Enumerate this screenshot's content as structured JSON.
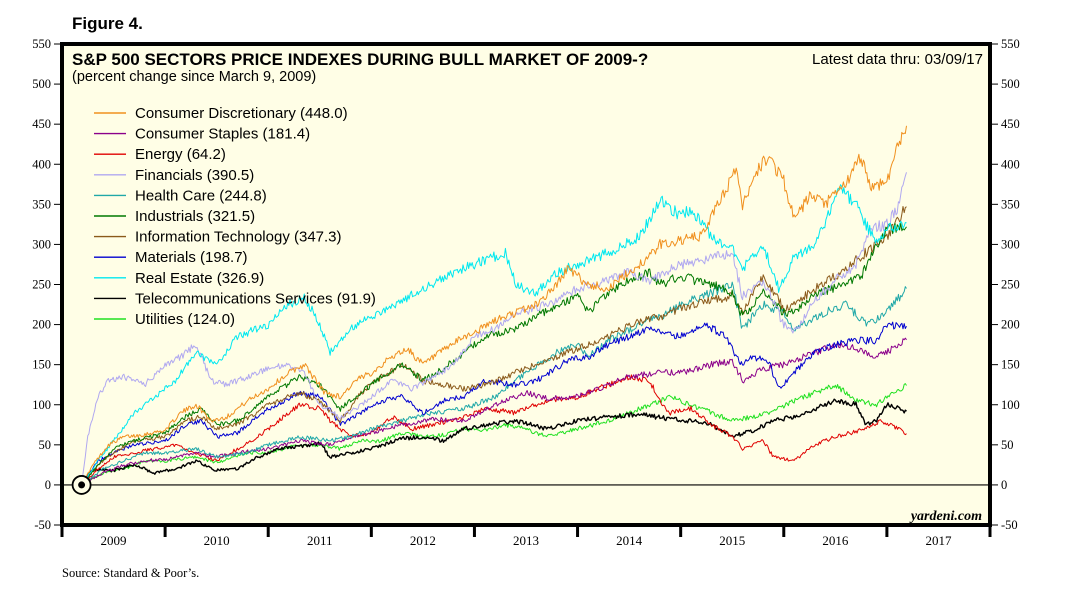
{
  "figure_label": "Figure 4.",
  "source": "Source: Standard & Poor’s.",
  "chart_data": {
    "type": "line",
    "title": "S&P 500 SECTORS PRICE INDEXES DURING BULL MARKET OF 2009-?",
    "subtitle": "(percent change since March 9, 2009)",
    "annotation_latest": "Latest data thru: 03/09/17",
    "watermark": "yardeni.com",
    "xlabel": "",
    "ylabel": "",
    "xlim": [
      2009.0,
      2018.0
    ],
    "ylim": [
      -50,
      550
    ],
    "yticks": [
      -50,
      0,
      50,
      100,
      150,
      200,
      250,
      300,
      350,
      400,
      450,
      500,
      550
    ],
    "ytick_labels": [
      "-50",
      "0",
      "50",
      "100",
      "150",
      "200",
      "250",
      "300",
      "350",
      "400",
      "450",
      "500",
      "550"
    ],
    "xtick_labels": [
      "2009",
      "2010",
      "2011",
      "2012",
      "2013",
      "2014",
      "2015",
      "2016",
      "2017"
    ],
    "xtick_boundaries": [
      2009,
      2010,
      2011,
      2012,
      2013,
      2014,
      2015,
      2016,
      2017,
      2018
    ],
    "grid": false,
    "zero_line": true,
    "origin_marker": {
      "x": 2009.19,
      "y": 0
    },
    "legend_position": "top-left",
    "series": [
      {
        "name": "Consumer Discretionary",
        "legend": "Consumer Discretionary (448.0)",
        "latest": 448.0,
        "color": "#f0901e",
        "x": [
          2009.19,
          2009.3,
          2009.45,
          2009.6,
          2009.75,
          2010.0,
          2010.15,
          2010.3,
          2010.45,
          2010.6,
          2010.8,
          2011.0,
          2011.2,
          2011.35,
          2011.55,
          2011.7,
          2011.85,
          2012.0,
          2012.2,
          2012.35,
          2012.5,
          2012.7,
          2012.9,
          2013.0,
          2013.2,
          2013.4,
          2013.6,
          2013.8,
          2013.9,
          2014.0,
          2014.1,
          2014.3,
          2014.5,
          2014.7,
          2014.8,
          2015.0,
          2015.2,
          2015.4,
          2015.55,
          2015.6,
          2015.7,
          2015.85,
          2016.0,
          2016.1,
          2016.25,
          2016.4,
          2016.6,
          2016.75,
          2016.85,
          2017.0,
          2017.1,
          2017.19
        ],
        "y": [
          0,
          25,
          50,
          60,
          62,
          68,
          90,
          100,
          80,
          85,
          105,
          120,
          140,
          150,
          115,
          110,
          130,
          140,
          160,
          170,
          150,
          168,
          185,
          190,
          205,
          215,
          225,
          250,
          270,
          260,
          250,
          245,
          265,
          285,
          300,
          305,
          310,
          360,
          395,
          345,
          385,
          410,
          380,
          330,
          360,
          350,
          375,
          410,
          370,
          380,
          420,
          448
        ]
      },
      {
        "name": "Consumer Staples",
        "legend": "Consumer Staples (181.4)",
        "latest": 181.4,
        "color": "#8b008b",
        "x": [
          2009.19,
          2009.4,
          2009.6,
          2009.8,
          2010.0,
          2010.3,
          2010.5,
          2010.8,
          2011.0,
          2011.3,
          2011.6,
          2011.8,
          2012.0,
          2012.3,
          2012.6,
          2012.9,
          2013.2,
          2013.5,
          2013.7,
          2014.0,
          2014.2,
          2014.5,
          2014.8,
          2015.0,
          2015.3,
          2015.5,
          2015.6,
          2015.8,
          2016.0,
          2016.3,
          2016.5,
          2016.7,
          2016.9,
          2017.0,
          2017.19
        ],
        "y": [
          0,
          15,
          25,
          30,
          32,
          40,
          35,
          42,
          45,
          55,
          50,
          60,
          65,
          75,
          82,
          80,
          100,
          115,
          108,
          110,
          120,
          135,
          140,
          140,
          150,
          155,
          130,
          145,
          150,
          165,
          175,
          170,
          160,
          165,
          181
        ]
      },
      {
        "name": "Energy",
        "legend": "Energy (64.2)",
        "latest": 64.2,
        "color": "#e00000",
        "x": [
          2009.19,
          2009.35,
          2009.5,
          2009.7,
          2009.9,
          2010.1,
          2010.3,
          2010.5,
          2010.7,
          2010.9,
          2011.1,
          2011.3,
          2011.5,
          2011.6,
          2011.8,
          2012.0,
          2012.2,
          2012.4,
          2012.6,
          2012.9,
          2013.1,
          2013.4,
          2013.7,
          2014.0,
          2014.3,
          2014.5,
          2014.7,
          2014.8,
          2014.9,
          2015.1,
          2015.3,
          2015.5,
          2015.6,
          2015.8,
          2015.9,
          2016.1,
          2016.3,
          2016.5,
          2016.8,
          2016.95,
          2017.19
        ],
        "y": [
          0,
          20,
          35,
          40,
          45,
          50,
          40,
          30,
          45,
          60,
          80,
          100,
          95,
          80,
          60,
          65,
          85,
          70,
          75,
          85,
          95,
          90,
          105,
          110,
          125,
          135,
          130,
          105,
          90,
          95,
          75,
          60,
          45,
          55,
          35,
          30,
          50,
          60,
          70,
          80,
          64
        ]
      },
      {
        "name": "Financials",
        "legend": "Financials (390.5)",
        "latest": 390.5,
        "color": "#b0a8f0",
        "x": [
          2009.19,
          2009.25,
          2009.35,
          2009.45,
          2009.6,
          2009.8,
          2010.0,
          2010.15,
          2010.3,
          2010.45,
          2010.6,
          2010.8,
          2011.0,
          2011.2,
          2011.35,
          2011.5,
          2011.7,
          2011.85,
          2012.0,
          2012.2,
          2012.4,
          2012.6,
          2012.8,
          2013.0,
          2013.2,
          2013.4,
          2013.6,
          2013.8,
          2014.0,
          2014.3,
          2014.5,
          2014.7,
          2015.0,
          2015.2,
          2015.5,
          2015.6,
          2015.8,
          2016.0,
          2016.1,
          2016.3,
          2016.5,
          2016.7,
          2016.85,
          2017.0,
          2017.1,
          2017.19
        ],
        "y": [
          0,
          60,
          110,
          130,
          135,
          125,
          150,
          160,
          175,
          130,
          125,
          135,
          145,
          150,
          140,
          100,
          85,
          95,
          110,
          130,
          120,
          135,
          150,
          185,
          195,
          215,
          220,
          230,
          245,
          255,
          265,
          255,
          275,
          280,
          290,
          235,
          255,
          200,
          190,
          230,
          255,
          275,
          320,
          325,
          345,
          390
        ]
      },
      {
        "name": "Health Care",
        "legend": "Health Care (244.8)",
        "latest": 244.8,
        "color": "#20a8a8",
        "x": [
          2009.19,
          2009.4,
          2009.6,
          2009.8,
          2010.0,
          2010.3,
          2010.5,
          2010.8,
          2011.0,
          2011.3,
          2011.6,
          2011.8,
          2012.0,
          2012.3,
          2012.6,
          2012.9,
          2013.2,
          2013.5,
          2013.8,
          2014.0,
          2014.1,
          2014.3,
          2014.6,
          2014.8,
          2015.0,
          2015.3,
          2015.5,
          2015.6,
          2015.8,
          2016.0,
          2016.1,
          2016.4,
          2016.6,
          2016.8,
          2017.0,
          2017.19
        ],
        "y": [
          0,
          20,
          30,
          40,
          40,
          45,
          35,
          40,
          50,
          60,
          55,
          60,
          70,
          80,
          90,
          95,
          110,
          140,
          165,
          175,
          160,
          180,
          200,
          210,
          225,
          240,
          250,
          195,
          225,
          215,
          195,
          215,
          225,
          200,
          215,
          245
        ]
      },
      {
        "name": "Industrials",
        "legend": "Industrials (321.5)",
        "latest": 321.5,
        "color": "#007800",
        "x": [
          2009.19,
          2009.35,
          2009.5,
          2009.7,
          2010.0,
          2010.2,
          2010.35,
          2010.5,
          2010.7,
          2011.0,
          2011.3,
          2011.5,
          2011.7,
          2011.9,
          2012.1,
          2012.3,
          2012.5,
          2012.7,
          2012.9,
          2013.1,
          2013.4,
          2013.6,
          2013.9,
          2014.0,
          2014.1,
          2014.3,
          2014.5,
          2014.7,
          2014.8,
          2015.0,
          2015.3,
          2015.5,
          2015.6,
          2015.8,
          2016.0,
          2016.1,
          2016.3,
          2016.5,
          2016.75,
          2016.85,
          2017.0,
          2017.19
        ],
        "y": [
          0,
          25,
          45,
          55,
          65,
          85,
          95,
          75,
          80,
          110,
          135,
          125,
          95,
          115,
          135,
          150,
          130,
          145,
          165,
          185,
          195,
          210,
          230,
          235,
          215,
          240,
          255,
          265,
          250,
          260,
          250,
          240,
          210,
          240,
          215,
          215,
          240,
          245,
          260,
          285,
          320,
          322
        ]
      },
      {
        "name": "Information Technology",
        "legend": "Information Technology (347.3)",
        "latest": 347.3,
        "color": "#8b5a1a",
        "x": [
          2009.19,
          2009.35,
          2009.5,
          2009.7,
          2010.0,
          2010.2,
          2010.35,
          2010.5,
          2010.7,
          2011.0,
          2011.3,
          2011.5,
          2011.7,
          2011.9,
          2012.1,
          2012.3,
          2012.5,
          2012.7,
          2012.9,
          2013.1,
          2013.4,
          2013.7,
          2014.0,
          2014.1,
          2014.3,
          2014.6,
          2014.8,
          2015.0,
          2015.3,
          2015.5,
          2015.6,
          2015.8,
          2016.0,
          2016.1,
          2016.3,
          2016.5,
          2016.7,
          2016.9,
          2017.0,
          2017.19
        ],
        "y": [
          0,
          25,
          40,
          55,
          60,
          80,
          85,
          70,
          75,
          100,
          115,
          105,
          80,
          115,
          135,
          150,
          130,
          125,
          120,
          125,
          140,
          155,
          170,
          175,
          185,
          205,
          210,
          220,
          230,
          235,
          215,
          260,
          220,
          225,
          245,
          260,
          280,
          300,
          310,
          347
        ]
      },
      {
        "name": "Materials",
        "legend": "Materials (198.7)",
        "latest": 198.7,
        "color": "#0000d0",
        "x": [
          2009.19,
          2009.35,
          2009.5,
          2009.7,
          2010.0,
          2010.2,
          2010.35,
          2010.5,
          2010.7,
          2011.0,
          2011.3,
          2011.5,
          2011.7,
          2011.9,
          2012.1,
          2012.3,
          2012.5,
          2012.7,
          2012.9,
          2013.1,
          2013.4,
          2013.6,
          2013.9,
          2014.1,
          2014.3,
          2014.5,
          2014.7,
          2015.0,
          2015.2,
          2015.4,
          2015.6,
          2015.7,
          2015.85,
          2015.95,
          2016.1,
          2016.3,
          2016.5,
          2016.7,
          2016.9,
          2017.0,
          2017.19
        ],
        "y": [
          0,
          30,
          40,
          50,
          55,
          75,
          80,
          60,
          65,
          95,
          115,
          110,
          75,
          90,
          105,
          110,
          90,
          105,
          110,
          130,
          125,
          130,
          155,
          160,
          175,
          185,
          195,
          185,
          200,
          190,
          150,
          160,
          155,
          120,
          140,
          165,
          175,
          180,
          180,
          200,
          198
        ]
      },
      {
        "name": "Real Estate",
        "legend": "Real Estate (326.9)",
        "latest": 326.9,
        "color": "#00e8f0",
        "x": [
          2009.19,
          2009.35,
          2009.5,
          2009.7,
          2009.9,
          2010.1,
          2010.3,
          2010.5,
          2010.7,
          2011.0,
          2011.2,
          2011.35,
          2011.5,
          2011.6,
          2011.8,
          2012.0,
          2012.3,
          2012.5,
          2012.8,
          2013.0,
          2013.3,
          2013.4,
          2013.6,
          2013.8,
          2014.0,
          2014.3,
          2014.6,
          2014.8,
          2015.0,
          2015.1,
          2015.3,
          2015.5,
          2015.6,
          2015.8,
          2015.95,
          2016.1,
          2016.3,
          2016.55,
          2016.7,
          2016.9,
          2017.0,
          2017.19
        ],
        "y": [
          0,
          30,
          55,
          90,
          110,
          130,
          165,
          150,
          185,
          200,
          225,
          235,
          200,
          165,
          195,
          210,
          230,
          245,
          265,
          275,
          290,
          250,
          240,
          265,
          275,
          290,
          310,
          355,
          335,
          345,
          310,
          295,
          270,
          300,
          245,
          285,
          300,
          370,
          350,
          300,
          320,
          327
        ]
      },
      {
        "name": "Telecommunications Services",
        "legend": "Telecommunications Services (91.9)",
        "latest": 91.9,
        "color": "#000000",
        "x": [
          2009.19,
          2009.3,
          2009.5,
          2009.7,
          2009.9,
          2010.1,
          2010.3,
          2010.5,
          2010.7,
          2010.9,
          2011.1,
          2011.3,
          2011.5,
          2011.6,
          2011.8,
          2012.0,
          2012.3,
          2012.5,
          2012.7,
          2012.9,
          2013.1,
          2013.4,
          2013.7,
          2014.0,
          2014.3,
          2014.6,
          2014.9,
          2015.1,
          2015.3,
          2015.5,
          2015.7,
          2015.9,
          2016.1,
          2016.3,
          2016.5,
          2016.7,
          2016.8,
          2016.9,
          2017.0,
          2017.19
        ],
        "y": [
          0,
          20,
          18,
          25,
          15,
          20,
          30,
          18,
          20,
          35,
          45,
          48,
          52,
          35,
          40,
          45,
          58,
          60,
          55,
          70,
          75,
          80,
          70,
          80,
          85,
          88,
          82,
          80,
          75,
          60,
          68,
          80,
          85,
          95,
          105,
          100,
          75,
          80,
          100,
          92
        ]
      },
      {
        "name": "Utilities",
        "legend": "Utilities (124.0)",
        "latest": 124.0,
        "color": "#20e020",
        "x": [
          2009.19,
          2009.4,
          2009.6,
          2009.8,
          2010.0,
          2010.3,
          2010.5,
          2010.8,
          2011.0,
          2011.3,
          2011.5,
          2011.7,
          2011.9,
          2012.1,
          2012.3,
          2012.5,
          2012.7,
          2012.9,
          2013.1,
          2013.3,
          2013.5,
          2013.7,
          2014.0,
          2014.3,
          2014.6,
          2014.9,
          2015.1,
          2015.3,
          2015.5,
          2015.7,
          2015.9,
          2016.1,
          2016.3,
          2016.5,
          2016.7,
          2016.9,
          2017.0,
          2017.19
        ],
        "y": [
          0,
          15,
          20,
          30,
          30,
          35,
          28,
          40,
          40,
          50,
          50,
          45,
          55,
          55,
          65,
          60,
          62,
          70,
          68,
          75,
          70,
          60,
          70,
          80,
          95,
          110,
          100,
          90,
          80,
          85,
          92,
          105,
          115,
          125,
          105,
          100,
          110,
          124
        ]
      }
    ]
  }
}
